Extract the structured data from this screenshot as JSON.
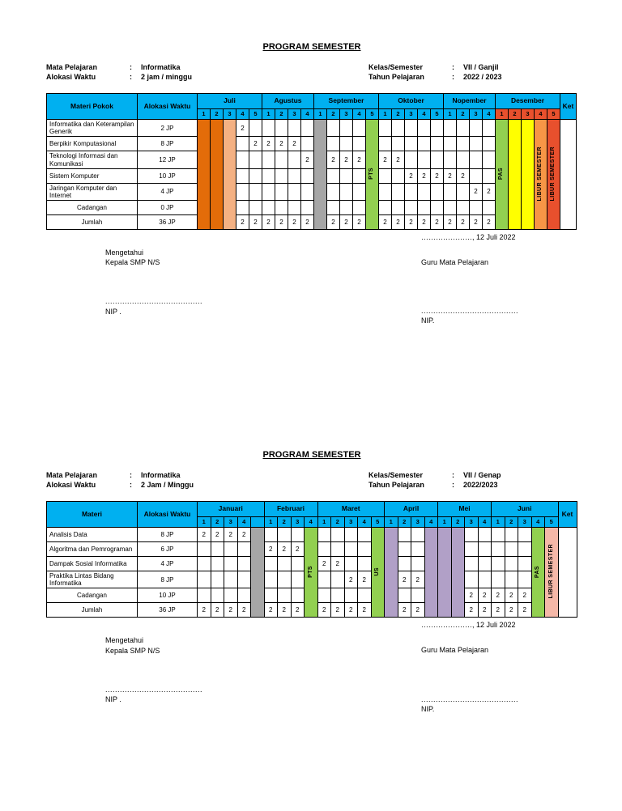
{
  "tables": [
    {
      "id": "ganjil",
      "title": "PROGRAM SEMESTER",
      "info_left": [
        {
          "label": "Mata Pelajaran",
          "sep": ":",
          "value": "Informatika"
        },
        {
          "label": "Alokasi Waktu",
          "sep": ":",
          "value": "2 jam / minggu"
        }
      ],
      "info_right": [
        {
          "label": "Kelas/Semester",
          "sep": ":",
          "value": "VII / Ganjil"
        },
        {
          "label": "Tahun Pelajaran",
          "sep": ":",
          "value": "2022 / 2023"
        }
      ],
      "materi_header": "Materi Pokok",
      "alokasi_header": "Alokasi Waktu",
      "ket_header": "Ket",
      "header_bg": "#00B0F0",
      "months": [
        {
          "name": "Juli",
          "weeks": [
            "1",
            "2",
            "3",
            "4",
            "5"
          ]
        },
        {
          "name": "Agustus",
          "weeks": [
            "1",
            "2",
            "3",
            "4"
          ]
        },
        {
          "name": "September",
          "weeks": [
            "1",
            "2",
            "3",
            "4",
            "5"
          ]
        },
        {
          "name": "Oktober",
          "weeks": [
            "1",
            "2",
            "3",
            "4",
            "5"
          ]
        },
        {
          "name": "Nopember",
          "weeks": [
            "1",
            "2",
            "3",
            "4"
          ]
        },
        {
          "name": "Desember",
          "weeks": [
            "1",
            "2",
            "3",
            "4",
            "5"
          ],
          "week_bg": "#E8502D"
        }
      ],
      "special_columns": [
        {
          "col": 0,
          "bg": "#E36C09",
          "label": ""
        },
        {
          "col": 1,
          "bg": "#E36C09",
          "label": ""
        },
        {
          "col": 2,
          "bg": "#F4B183",
          "label": ""
        },
        {
          "col": 9,
          "bg": "#A6A6A6",
          "label": ""
        },
        {
          "col": 13,
          "bg": "#92D050",
          "label": "PTS"
        },
        {
          "col": 23,
          "bg": "#92D050",
          "label": "PAS"
        },
        {
          "col": 24,
          "bg": "#FFFF00",
          "label": ""
        },
        {
          "col": 25,
          "bg": "#FFFF00",
          "label": ""
        },
        {
          "col": 26,
          "bg": "#F79646",
          "label": "LIBUR SEMESTER"
        },
        {
          "col": 27,
          "bg": "#E8502D",
          "label": "LIBUR SEMESTER"
        }
      ],
      "rows": [
        {
          "materi": "Informatika dan Keterampilan Generik",
          "jp": "2 JP",
          "cells": {
            "3": "2"
          }
        },
        {
          "materi": "Berpikir Komputasional",
          "jp": "8 JP",
          "cells": {
            "4": "2",
            "5": "2",
            "6": "2",
            "7": "2"
          }
        },
        {
          "materi": "Teknologi Informasi dan Komunikasi",
          "jp": "12 JP",
          "cells": {
            "8": "2",
            "10": "2",
            "11": "2",
            "12": "2",
            "14": "2",
            "15": "2"
          }
        },
        {
          "materi": "Sistem Komputer",
          "jp": "10 JP",
          "cells": {
            "16": "2",
            "17": "2",
            "18": "2",
            "19": "2",
            "20": "2"
          }
        },
        {
          "materi": "Jaringan Komputer dan Internet",
          "jp": "4 JP",
          "cells": {
            "21": "2",
            "22": "2"
          }
        },
        {
          "materi": "Cadangan",
          "jp": "0 JP",
          "center": true,
          "cells": {}
        },
        {
          "materi": "Jumlah",
          "jp": "36 JP",
          "center": true,
          "cells": {
            "3": "2",
            "4": "2",
            "5": "2",
            "6": "2",
            "7": "2",
            "8": "2",
            "10": "2",
            "11": "2",
            "12": "2",
            "14": "2",
            "15": "2",
            "16": "2",
            "17": "2",
            "18": "2",
            "19": "2",
            "20": "2",
            "21": "2",
            "22": "2"
          }
        }
      ],
      "date_line": "…………………, 12 Juli 2022",
      "signature": {
        "left_line1": "Mengetahui",
        "left_line2": "Kepala SMP N/S",
        "right_line": "Guru Mata Pelajaran",
        "left_dots": "........................................",
        "right_dots": "........................................",
        "left_nip": "NIP .",
        "right_nip": "NIP."
      }
    },
    {
      "id": "genap",
      "title": "PROGRAM SEMESTER",
      "info_left": [
        {
          "label": "Mata Pelajaran",
          "sep": ":",
          "value": "Informatika"
        },
        {
          "label": "Alokasi Waktu",
          "sep": ":",
          "value": "2 Jam / Minggu"
        }
      ],
      "info_right": [
        {
          "label": "Kelas/Semester",
          "sep": ":",
          "value": "VII / Genap"
        },
        {
          "label": "Tahun Pelajaran",
          "sep": ":",
          "value": "2022/2023"
        }
      ],
      "materi_header": "Materi",
      "alokasi_header": "Alokasi Waktu",
      "ket_header": "Ket",
      "header_bg": "#00B0F0",
      "months": [
        {
          "name": "Januari",
          "weeks": [
            "1",
            "2",
            "3",
            "4",
            ""
          ]
        },
        {
          "name": "Februari",
          "weeks": [
            "1",
            "2",
            "3",
            "4"
          ]
        },
        {
          "name": "Maret",
          "weeks": [
            "1",
            "2",
            "3",
            "4",
            "5"
          ]
        },
        {
          "name": "April",
          "weeks": [
            "1",
            "2",
            "3",
            "4"
          ]
        },
        {
          "name": "Mei",
          "weeks": [
            "1",
            "2",
            "3",
            "4"
          ]
        },
        {
          "name": "Juni",
          "weeks": [
            "1",
            "2",
            "3",
            "4",
            "5"
          ]
        }
      ],
      "special_columns": [
        {
          "col": 4,
          "bg": "#A6A6A6",
          "label": ""
        },
        {
          "col": 8,
          "bg": "#92D050",
          "label": "PTS"
        },
        {
          "col": 13,
          "bg": "#92D050",
          "label": "US"
        },
        {
          "col": 14,
          "bg": "#B1A0C7",
          "label": ""
        },
        {
          "col": 17,
          "bg": "#B1A0C7",
          "label": ""
        },
        {
          "col": 18,
          "bg": "#B1A0C7",
          "label": ""
        },
        {
          "col": 19,
          "bg": "#B1A0C7",
          "label": ""
        },
        {
          "col": 25,
          "bg": "#92D050",
          "label": "PAS"
        },
        {
          "col": 26,
          "bg": "#F5B8A8",
          "label": "LIBUR SEMESTER"
        }
      ],
      "rows": [
        {
          "materi": "Analisis Data",
          "jp": "8 JP",
          "cells": {
            "0": "2",
            "1": "2",
            "2": "2",
            "3": "2"
          }
        },
        {
          "materi": "Algoritma dan Pemrograman",
          "jp": "6 JP",
          "cells": {
            "5": "2",
            "6": "2",
            "7": "2"
          }
        },
        {
          "materi": "Dampak Sosial Informatika",
          "jp": "4 JP",
          "cells": {
            "9": "2",
            "10": "2"
          }
        },
        {
          "materi": "Praktika Lintas Bidang Informatika",
          "jp": "8 JP",
          "cells": {
            "11": "2",
            "12": "2",
            "15": "2",
            "16": "2"
          }
        },
        {
          "materi": "Cadangan",
          "jp": "10 JP",
          "center": true,
          "cells": {
            "20": "2",
            "21": "2",
            "22": "2",
            "23": "2",
            "24": "2"
          }
        },
        {
          "materi": "Jumlah",
          "jp": "36 JP",
          "center": true,
          "cells": {
            "0": "2",
            "1": "2",
            "2": "2",
            "3": "2",
            "5": "2",
            "6": "2",
            "7": "2",
            "9": "2",
            "10": "2",
            "11": "2",
            "12": "2",
            "15": "2",
            "16": "2",
            "20": "2",
            "21": "2",
            "22": "2",
            "23": "2",
            "24": "2"
          }
        }
      ],
      "date_line": "…………………, 12 Juli 2022",
      "signature": {
        "left_line1": "Mengetahui",
        "left_line2": "Kepala SMP N/S",
        "right_line": "Guru Mata Pelajaran",
        "left_dots": "........................................",
        "right_dots": "........................................",
        "left_nip": "NIP .",
        "right_nip": "NIP."
      }
    }
  ]
}
